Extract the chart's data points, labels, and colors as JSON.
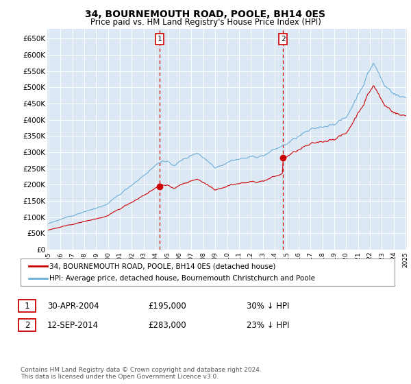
{
  "title": "34, BOURNEMOUTH ROAD, POOLE, BH14 0ES",
  "subtitle": "Price paid vs. HM Land Registry's House Price Index (HPI)",
  "ylim": [
    0,
    680000
  ],
  "yticks": [
    0,
    50000,
    100000,
    150000,
    200000,
    250000,
    300000,
    350000,
    400000,
    450000,
    500000,
    550000,
    600000,
    650000
  ],
  "ytick_labels": [
    "£0",
    "£50K",
    "£100K",
    "£150K",
    "£200K",
    "£250K",
    "£300K",
    "£350K",
    "£400K",
    "£450K",
    "£500K",
    "£550K",
    "£600K",
    "£650K"
  ],
  "hpi_color": "#6baed6",
  "sold_color": "#cc0000",
  "sale1_x": 2004.33,
  "sale1_y": 195000,
  "sale2_x": 2014.7,
  "sale2_y": 283000,
  "vline_color": "#cc0000",
  "background_color": "#dde8f5",
  "legend_label_sold": "34, BOURNEMOUTH ROAD, POOLE, BH14 0ES (detached house)",
  "legend_label_hpi": "HPI: Average price, detached house, Bournemouth Christchurch and Poole",
  "note1_date": "30-APR-2004",
  "note1_price": "£195,000",
  "note1_pct": "30% ↓ HPI",
  "note2_date": "12-SEP-2014",
  "note2_price": "£283,000",
  "note2_pct": "23% ↓ HPI",
  "footer": "Contains HM Land Registry data © Crown copyright and database right 2024.\nThis data is licensed under the Open Government Licence v3.0.",
  "xmin": 1995,
  "xmax": 2025
}
